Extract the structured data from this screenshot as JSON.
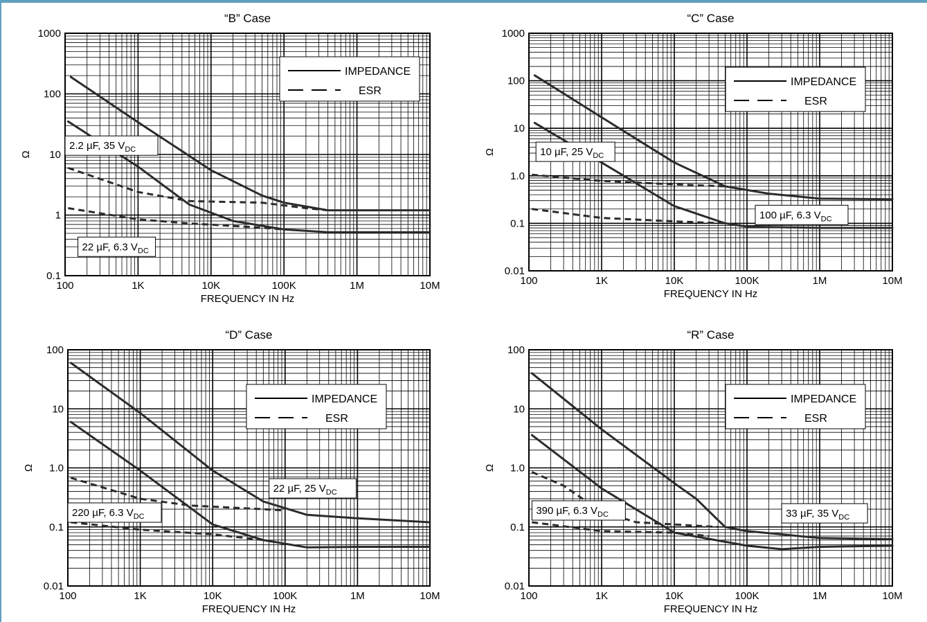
{
  "chart_data": [
    {
      "type": "line",
      "title": "“B” Case",
      "xlabel": "FREQUENCY IN Hz",
      "ylabel": "Ω",
      "xscale": "log",
      "yscale": "log",
      "xlim": [
        100,
        10000000
      ],
      "ylim": [
        0.1,
        1000
      ],
      "xticks": [
        100,
        1000,
        10000,
        100000,
        1000000,
        10000000
      ],
      "xtick_labels": [
        "100",
        "1K",
        "10K",
        "100K",
        "1M",
        "10M"
      ],
      "yticks": [
        0.1,
        1,
        10,
        100,
        1000
      ],
      "ytick_labels": [
        "0.1",
        "1",
        "10",
        "100",
        "1000"
      ],
      "grid": true,
      "legend": {
        "placement": "top-right",
        "items": [
          {
            "label": "IMPEDANCE",
            "style": "solid"
          },
          {
            "label": "ESR",
            "style": "dashed"
          }
        ]
      },
      "annotations": [
        {
          "main": "2.2 µF, 35 V",
          "sub": "DC",
          "x": 100,
          "y": 14
        },
        {
          "main": "22 µF, 6.3 V",
          "sub": "DC",
          "x": 150,
          "y": 0.3
        }
      ],
      "series": [
        {
          "style": "solid",
          "points": [
            [
              120,
              190
            ],
            [
              1000,
              34
            ],
            [
              10000,
              5.5
            ],
            [
              50000,
              2.1
            ],
            [
              100000,
              1.6
            ],
            [
              400000,
              1.2
            ],
            [
              10000000,
              1.2
            ]
          ]
        },
        {
          "style": "dashed",
          "points": [
            [
              110,
              6
            ],
            [
              1000,
              2.4
            ],
            [
              5000,
              1.7
            ],
            [
              50000,
              1.6
            ],
            [
              200000,
              1.3
            ],
            [
              400000,
              1.2
            ]
          ]
        },
        {
          "style": "solid",
          "points": [
            [
              110,
              35
            ],
            [
              1000,
              6.3
            ],
            [
              5000,
              1.5
            ],
            [
              20000,
              0.8
            ],
            [
              100000,
              0.58
            ],
            [
              400000,
              0.52
            ],
            [
              10000000,
              0.52
            ]
          ]
        },
        {
          "style": "dashed",
          "points": [
            [
              110,
              1.3
            ],
            [
              1000,
              0.85
            ],
            [
              5000,
              0.73
            ],
            [
              50000,
              0.62
            ],
            [
              100000,
              0.58
            ]
          ]
        }
      ]
    },
    {
      "type": "line",
      "title": "“C” Case",
      "xlabel": "FREQUENCY IN Hz",
      "ylabel": "Ω",
      "xscale": "log",
      "yscale": "log",
      "xlim": [
        100,
        10000000
      ],
      "ylim": [
        0.01,
        1000
      ],
      "xticks": [
        100,
        1000,
        10000,
        100000,
        1000000,
        10000000
      ],
      "xtick_labels": [
        "100",
        "1K",
        "10K",
        "100K",
        "1M",
        "10M"
      ],
      "yticks": [
        0.01,
        0.1,
        1,
        10,
        100,
        1000
      ],
      "ytick_labels": [
        "0.01",
        "0.1",
        "1.0",
        "10",
        "100",
        "1000"
      ],
      "grid": true,
      "legend": {
        "placement": "top-right",
        "items": [
          {
            "label": "IMPEDANCE",
            "style": "solid"
          },
          {
            "label": "ESR",
            "style": "dashed"
          }
        ]
      },
      "annotations": [
        {
          "main": "10 µF, 25 V",
          "sub": "DC",
          "x": 125,
          "y": 3.2
        },
        {
          "main": "100 µF, 6.3 V",
          "sub": "DC",
          "x": 130000,
          "y": 0.15
        }
      ],
      "series": [
        {
          "style": "solid",
          "points": [
            [
              120,
              130
            ],
            [
              1000,
              17
            ],
            [
              10000,
              1.9
            ],
            [
              50000,
              0.6
            ],
            [
              200000,
              0.42
            ],
            [
              1000000,
              0.33
            ],
            [
              10000000,
              0.32
            ]
          ]
        },
        {
          "style": "dashed",
          "points": [
            [
              110,
              1.05
            ],
            [
              1000,
              0.78
            ],
            [
              10000,
              0.66
            ],
            [
              50000,
              0.6
            ]
          ]
        },
        {
          "style": "solid",
          "points": [
            [
              120,
              13
            ],
            [
              1000,
              1.9
            ],
            [
              10000,
              0.23
            ],
            [
              50000,
              0.1
            ],
            [
              100000,
              0.085
            ],
            [
              1000000,
              0.08
            ],
            [
              10000000,
              0.08
            ]
          ]
        },
        {
          "style": "dashed",
          "points": [
            [
              110,
              0.2
            ],
            [
              1000,
              0.13
            ],
            [
              10000,
              0.11
            ],
            [
              50000,
              0.1
            ]
          ]
        }
      ]
    },
    {
      "type": "line",
      "title": "“D” Case",
      "xlabel": "FREQUENCY IN Hz",
      "ylabel": "Ω",
      "xscale": "log",
      "yscale": "log",
      "xlim": [
        100,
        10000000
      ],
      "ylim": [
        0.01,
        100
      ],
      "xticks": [
        100,
        1000,
        10000,
        100000,
        1000000,
        10000000
      ],
      "xtick_labels": [
        "100",
        "1K",
        "10K",
        "100K",
        "1M",
        "10M"
      ],
      "yticks": [
        0.01,
        0.1,
        1,
        10,
        100
      ],
      "ytick_labels": [
        "0.01",
        "0.1",
        "1.0",
        "10",
        "100"
      ],
      "grid": true,
      "legend": {
        "placement": "top-right",
        "items": [
          {
            "label": "IMPEDANCE",
            "style": "solid"
          },
          {
            "label": "ESR",
            "style": "dashed"
          }
        ]
      },
      "annotations": [
        {
          "main": "22 µF, 25 V",
          "sub": "DC",
          "x": 60000,
          "y": 0.45
        },
        {
          "main": "220 µF, 6.3 V",
          "sub": "DC",
          "x": 100,
          "y": 0.175
        }
      ],
      "series": [
        {
          "style": "solid",
          "points": [
            [
              110,
              60
            ],
            [
              1000,
              8.5
            ],
            [
              10000,
              0.9
            ],
            [
              50000,
              0.27
            ],
            [
              200000,
              0.16
            ],
            [
              1000000,
              0.14
            ],
            [
              10000000,
              0.12
            ]
          ]
        },
        {
          "style": "dashed",
          "points": [
            [
              110,
              0.68
            ],
            [
              1000,
              0.3
            ],
            [
              5000,
              0.23
            ],
            [
              50000,
              0.2
            ],
            [
              100000,
              0.19
            ]
          ]
        },
        {
          "style": "solid",
          "points": [
            [
              110,
              6
            ],
            [
              1000,
              0.9
            ],
            [
              10000,
              0.11
            ],
            [
              50000,
              0.06
            ],
            [
              200000,
              0.045
            ],
            [
              1000000,
              0.046
            ],
            [
              10000000,
              0.046
            ]
          ]
        },
        {
          "style": "dashed",
          "points": [
            [
              110,
              0.12
            ],
            [
              1000,
              0.09
            ],
            [
              10000,
              0.075
            ],
            [
              50000,
              0.06
            ]
          ]
        }
      ]
    },
    {
      "type": "line",
      "title": "“R” Case",
      "xlabel": "FREQUENCY IN Hz",
      "ylabel": "Ω",
      "xscale": "log",
      "yscale": "log",
      "xlim": [
        100,
        10000000
      ],
      "ylim": [
        0.01,
        100
      ],
      "xticks": [
        100,
        1000,
        10000,
        100000,
        1000000,
        10000000
      ],
      "xtick_labels": [
        "100",
        "1K",
        "10K",
        "100K",
        "1M",
        "10M"
      ],
      "yticks": [
        0.01,
        0.1,
        1,
        10,
        100
      ],
      "ytick_labels": [
        "0.01",
        "0.1",
        "1.0",
        "10",
        "100"
      ],
      "grid": true,
      "legend": {
        "placement": "top-right",
        "items": [
          {
            "label": "IMPEDANCE",
            "style": "solid"
          },
          {
            "label": "ESR",
            "style": "dashed"
          }
        ]
      },
      "annotations": [
        {
          "main": "33 µF, 35 V",
          "sub": "DC",
          "x": 300000,
          "y": 0.17
        },
        {
          "main": "390 µF, 6.3 V",
          "sub": "DC",
          "x": 110,
          "y": 0.19
        }
      ],
      "series": [
        {
          "style": "solid",
          "points": [
            [
              110,
              40
            ],
            [
              1000,
              4.5
            ],
            [
              10000,
              0.55
            ],
            [
              20000,
              0.3
            ],
            [
              50000,
              0.1
            ],
            [
              100000,
              0.085
            ],
            [
              1000000,
              0.065
            ],
            [
              10000000,
              0.062
            ]
          ]
        },
        {
          "style": "dashed",
          "points": [
            [
              110,
              0.85
            ],
            [
              300,
              0.5
            ],
            [
              1000,
              0.18
            ],
            [
              3000,
              0.12
            ],
            [
              10000,
              0.11
            ],
            [
              40000,
              0.1
            ]
          ]
        },
        {
          "style": "solid",
          "points": [
            [
              110,
              3.6
            ],
            [
              1000,
              0.45
            ],
            [
              10000,
              0.08
            ],
            [
              100000,
              0.048
            ],
            [
              300000,
              0.042
            ],
            [
              1000000,
              0.046
            ],
            [
              10000000,
              0.048
            ]
          ]
        },
        {
          "style": "dashed",
          "points": [
            [
              110,
              0.12
            ],
            [
              1000,
              0.085
            ],
            [
              10000,
              0.08
            ],
            [
              30000,
              0.07
            ]
          ]
        }
      ]
    }
  ]
}
